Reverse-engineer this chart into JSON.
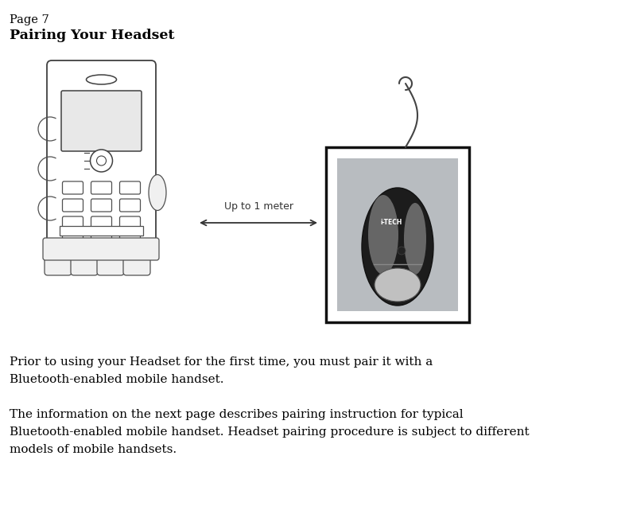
{
  "page_label": "Page 7",
  "title": "Pairing Your Headset",
  "paragraph1_line1": "Prior to using your Headset for the first time, you must pair it with a",
  "paragraph1_line2": "Bluetooth-enabled mobile handset.",
  "paragraph2_line1": "The information on the next page describes pairing instruction for typical",
  "paragraph2_line2": "Bluetooth-enabled mobile handset. Headset pairing procedure is subject to different",
  "paragraph2_line3": "models of mobile handsets.",
  "arrow_label": "Up to 1 meter",
  "bg_color": "#ffffff",
  "text_color": "#000000",
  "fig_width": 7.86,
  "fig_height": 6.51,
  "dpi": 100
}
